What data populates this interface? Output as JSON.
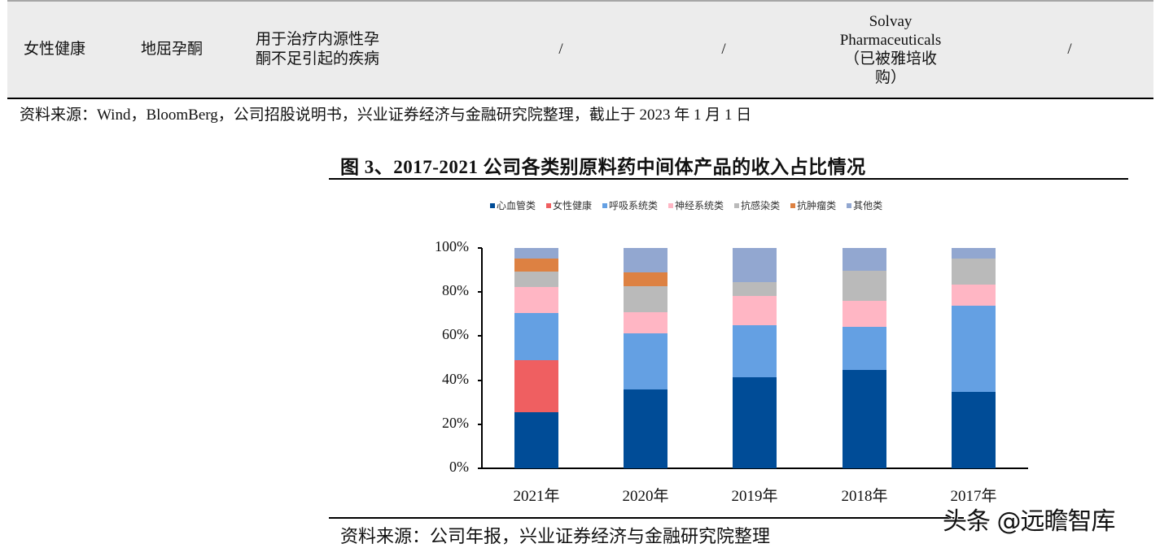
{
  "table_row": {
    "category": "女性健康",
    "drug": "地屈孕酮",
    "indication_lines": [
      "用于治疗内源性孕",
      "酮不足引起的疾病"
    ],
    "col4": "/",
    "col5": "/",
    "company_lines": [
      "Solvay",
      "Pharmaceuticals",
      "（已被雅培收",
      "购）"
    ],
    "col7": "/"
  },
  "table_source": "资料来源：Wind，BloomBerg，公司招股说明书，兴业证券经济与金融研究院整理，截止于 2023 年 1 月 1 日",
  "figure": {
    "title": "图 3、2017-2021 公司各类别原料药中间体产品的收入占比情况",
    "source": "资料来源：公司年报，兴业证券经济与金融研究院整理"
  },
  "watermark": "头条 @远瞻智库",
  "chart_data": {
    "type": "bar",
    "stacked": true,
    "title": "图 3、2017-2021 公司各类别原料药中间体产品的收入占比情况",
    "xlabel": "",
    "ylabel": "",
    "ylim": [
      0,
      100
    ],
    "yticks": [
      "0%",
      "20%",
      "40%",
      "60%",
      "80%",
      "100%"
    ],
    "legend_position": "top",
    "grid": false,
    "categories": [
      "2021年",
      "2020年",
      "2019年",
      "2018年",
      "2017年"
    ],
    "series": [
      {
        "name": "心血管类",
        "color": "#004C97",
        "values": [
          25.5,
          35.8,
          41.3,
          44.6,
          34.7
        ]
      },
      {
        "name": "女性健康",
        "color": "#EF5F61",
        "values": [
          23.6,
          0,
          0,
          0,
          0
        ]
      },
      {
        "name": "呼吸系统类",
        "color": "#64A0E3",
        "values": [
          21.4,
          25.5,
          23.6,
          19.6,
          39.1
        ]
      },
      {
        "name": "神经系统类",
        "color": "#FFB6C4",
        "values": [
          11.8,
          9.5,
          13.3,
          11.8,
          9.6
        ]
      },
      {
        "name": "抗感染类",
        "color": "#BABABA",
        "values": [
          7.0,
          11.9,
          6.3,
          13.7,
          11.8
        ]
      },
      {
        "name": "抗肿瘤类",
        "color": "#DD8142",
        "values": [
          5.9,
          6.2,
          0,
          0,
          0
        ]
      },
      {
        "name": "其他类",
        "color": "#92A7D0",
        "values": [
          4.8,
          11.1,
          15.5,
          10.3,
          4.8
        ]
      }
    ]
  }
}
